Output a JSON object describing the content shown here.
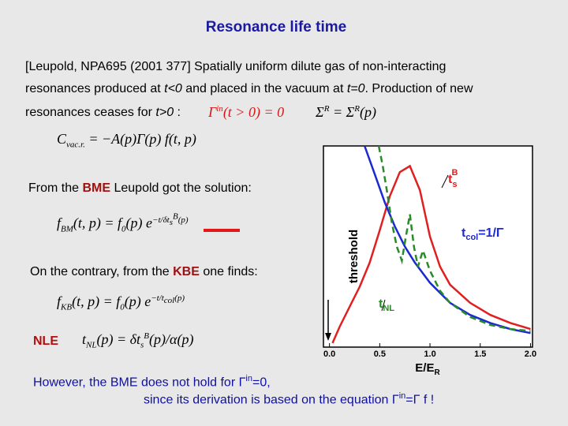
{
  "title": "Resonance life time",
  "intro": {
    "line1": "[Leupold, NPA695 (2001 377] Spatially uniform dilute gas of non-interacting",
    "line2": [
      "resonances produced at ",
      "t<0",
      " and  placed in the vacuum at ",
      "t=0",
      ". Production of new"
    ],
    "line3": [
      "resonances ceases for ",
      "t>0",
      " :"
    ],
    "eq_gamma": [
      "Γ",
      "in",
      "(t > 0) = 0"
    ],
    "eq_sigma": [
      "Σ",
      "R",
      " = Σ",
      "R",
      "(p)"
    ],
    "eq_coll": [
      "C",
      "vac.r.",
      " = −A(p)Γ(p) f(t, p)"
    ]
  },
  "bme": {
    "text": [
      "From the ",
      "BME",
      " Leupold got the solution:"
    ],
    "equation": [
      "f",
      "BM",
      "(t, p) = f",
      "0",
      "(p) e",
      "−t/δt",
      "s",
      "B",
      "(p)"
    ]
  },
  "kbe": {
    "text": [
      "On the contrary, from the ",
      "KBE",
      " one finds:"
    ],
    "equation": [
      "f",
      "KB",
      "(t, p) = f",
      "0",
      "(p) e",
      "−t/t",
      "col",
      "(p)"
    ]
  },
  "nle": {
    "label": "NLE",
    "equation": [
      "t",
      "NL",
      "(p) = δt",
      "s",
      "B",
      "(p)/α(p)"
    ]
  },
  "footer": {
    "line1": [
      "However, the BME does not hold for Γ",
      "in",
      "=0,"
    ],
    "line2": [
      "since its derivation is based on the equation Γ",
      "in",
      "=Γ f !"
    ]
  },
  "chart_data": {
    "type": "line",
    "xlabel": [
      "E/E",
      "R"
    ],
    "ylabel": "threshold",
    "xlim": [
      -0.06,
      2.02
    ],
    "ylim": [
      0,
      1
    ],
    "xticks": [
      {
        "value": 0,
        "label": "0.0"
      },
      {
        "value": 0.5,
        "label": "0.5"
      },
      {
        "value": 1,
        "label": "1.0"
      },
      {
        "value": 1.5,
        "label": "1.5"
      },
      {
        "value": 2,
        "label": "2.0"
      }
    ],
    "series": [
      {
        "name": [
          "t",
          "s",
          "B"
        ],
        "color": "#e02020",
        "dashed": false,
        "x": [
          0.03,
          0.1,
          0.2,
          0.3,
          0.4,
          0.5,
          0.6,
          0.7,
          0.8,
          0.9,
          1.0,
          1.1,
          1.2,
          1.4,
          1.6,
          1.8,
          2.0
        ],
        "values": [
          0.02,
          0.1,
          0.2,
          0.3,
          0.42,
          0.58,
          0.75,
          0.87,
          0.9,
          0.78,
          0.55,
          0.4,
          0.31,
          0.22,
          0.16,
          0.12,
          0.09
        ]
      },
      {
        "name": [
          "t",
          "col",
          "=1/Γ"
        ],
        "color": "#1a2ad0",
        "dashed": false,
        "x": [
          0.35,
          0.45,
          0.55,
          0.65,
          0.75,
          0.85,
          1.0,
          1.2,
          1.4,
          1.6,
          1.8,
          2.0
        ],
        "values": [
          1.0,
          0.86,
          0.72,
          0.6,
          0.5,
          0.42,
          0.32,
          0.22,
          0.16,
          0.12,
          0.09,
          0.07
        ]
      },
      {
        "name": [
          "t",
          "NL"
        ],
        "color": "#2a8a2a",
        "dashed": true,
        "x": [
          0.49,
          0.53,
          0.57,
          0.62,
          0.67,
          0.72,
          0.76,
          0.8,
          0.84,
          0.88,
          0.93,
          1.0,
          1.1,
          1.2,
          1.4,
          1.6,
          1.8,
          2.0
        ],
        "values": [
          1.0,
          0.9,
          0.78,
          0.62,
          0.5,
          0.43,
          0.55,
          0.66,
          0.5,
          0.4,
          0.48,
          0.38,
          0.28,
          0.22,
          0.15,
          0.11,
          0.09,
          0.08
        ]
      }
    ]
  }
}
